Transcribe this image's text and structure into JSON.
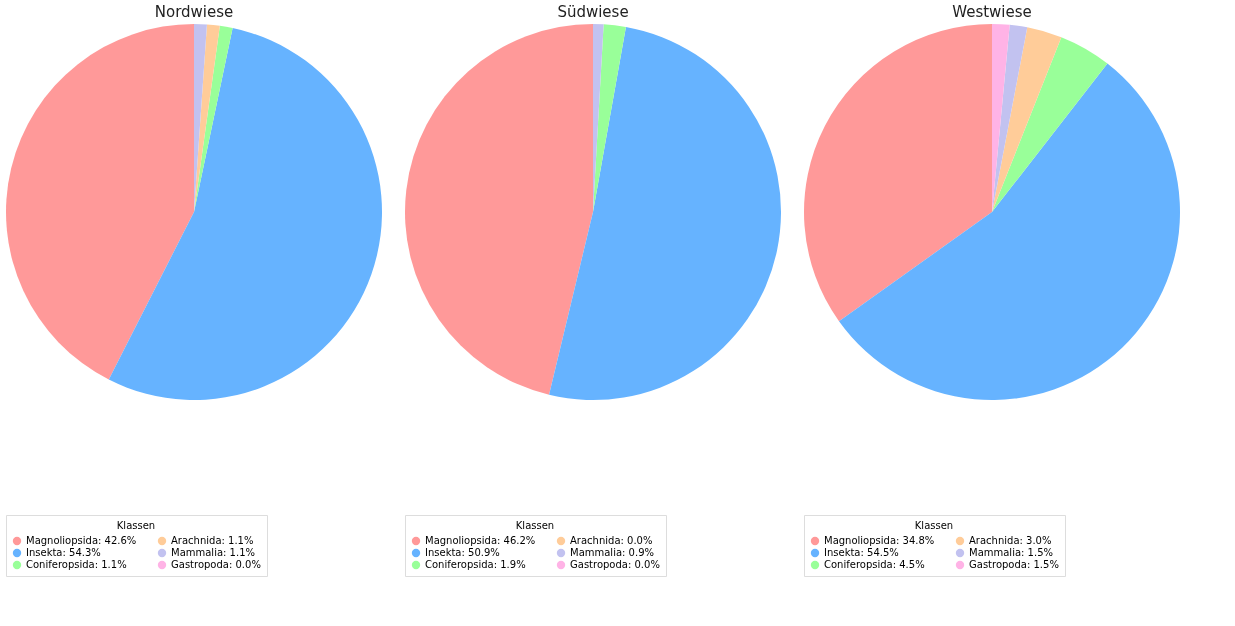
{
  "chart_data": [
    {
      "type": "pie",
      "title": "Nordwiese",
      "legend_title": "Klassen",
      "legend": "bottom",
      "categories": [
        "Magnoliopsida: 42.6%",
        "Insekta: 54.3%",
        "Coniferopsida: 1.1%",
        "Arachnida: 1.1%",
        "Mammalia: 1.1%",
        "Gastropoda: 0.0%"
      ],
      "values": [
        42.6,
        54.3,
        1.1,
        1.1,
        1.1,
        0.0
      ],
      "colors": [
        "#ff9999",
        "#66b3ff",
        "#99ff99",
        "#ffcc99",
        "#c2c2f0",
        "#ffb3e6"
      ]
    },
    {
      "type": "pie",
      "title": "Südwiese",
      "legend_title": "Klassen",
      "legend": "bottom",
      "categories": [
        "Magnoliopsida: 46.2%",
        "Insekta: 50.9%",
        "Coniferopsida: 1.9%",
        "Arachnida: 0.0%",
        "Mammalia: 0.9%",
        "Gastropoda: 0.0%"
      ],
      "values": [
        46.2,
        50.9,
        1.9,
        0.0,
        0.9,
        0.0
      ],
      "colors": [
        "#ff9999",
        "#66b3ff",
        "#99ff99",
        "#ffcc99",
        "#c2c2f0",
        "#ffb3e6"
      ]
    },
    {
      "type": "pie",
      "title": "Westwiese",
      "legend_title": "Klassen",
      "legend": "bottom",
      "categories": [
        "Magnoliopsida: 34.8%",
        "Insekta: 54.5%",
        "Coniferopsida: 4.5%",
        "Arachnida: 3.0%",
        "Mammalia: 1.5%",
        "Gastropoda: 1.5%"
      ],
      "values": [
        34.8,
        54.5,
        4.5,
        3.0,
        1.5,
        1.5
      ],
      "colors": [
        "#ff9999",
        "#66b3ff",
        "#99ff99",
        "#ffcc99",
        "#c2c2f0",
        "#ffb3e6"
      ]
    }
  ]
}
